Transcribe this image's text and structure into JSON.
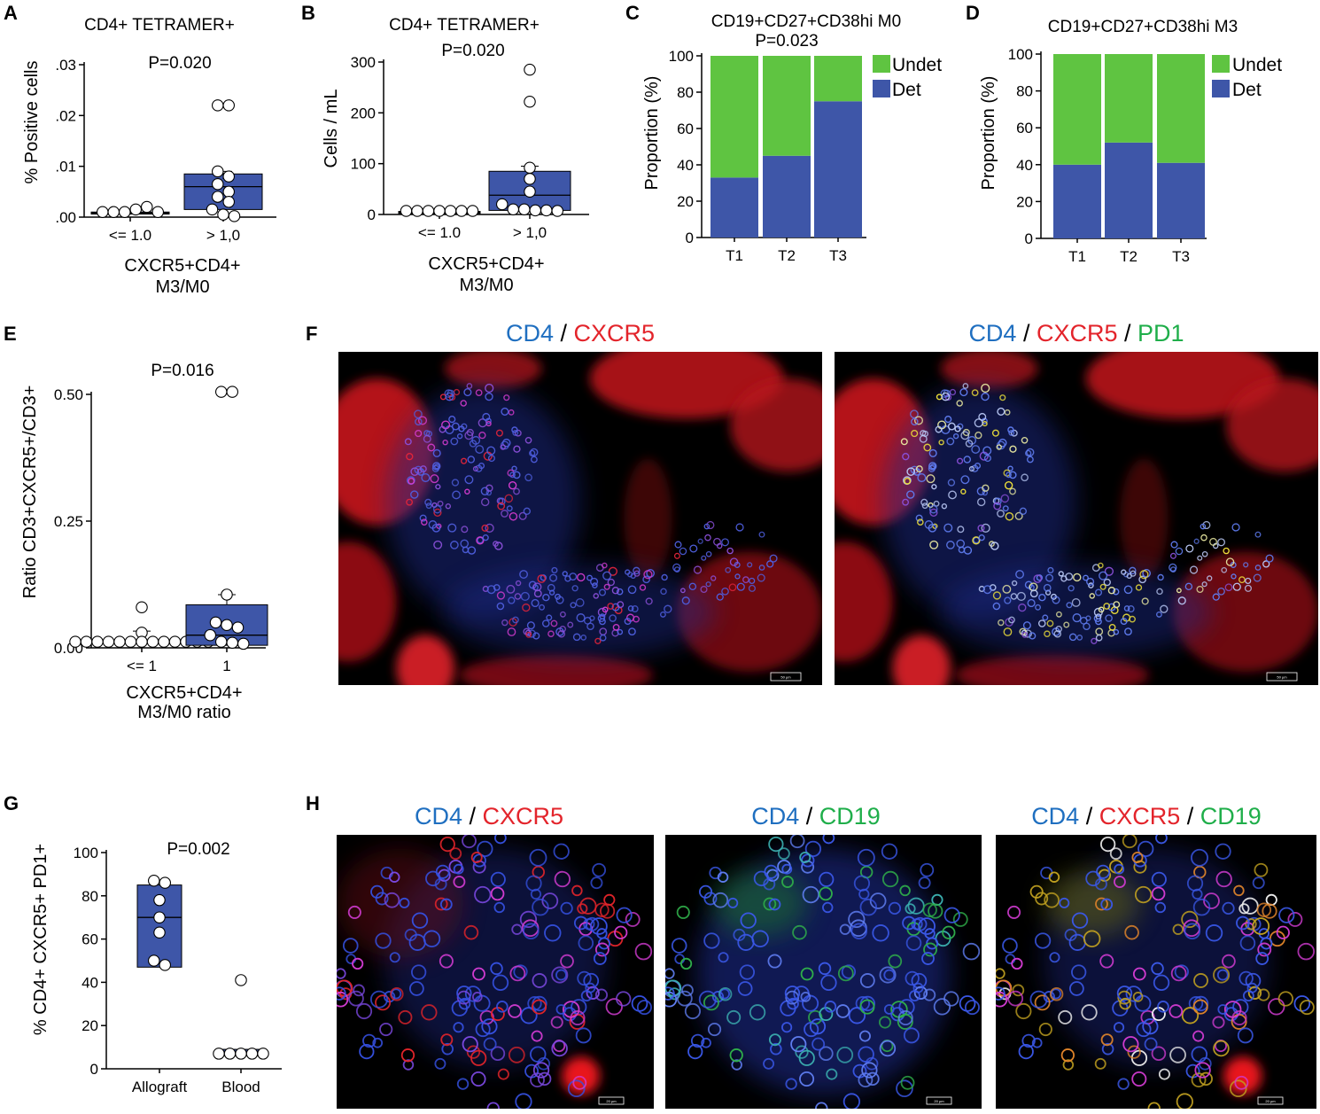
{
  "colors": {
    "box_fill": "#3e56a8",
    "det": "#3e56a8",
    "undet": "#5fc441",
    "cd4": "#1f6fc0",
    "cxcr5": "#e3242b",
    "green": "#1fae4a",
    "point_fill": "#ffffff",
    "axis": "#000000"
  },
  "panels": {
    "A": {
      "letter": "A",
      "title": "CD4+ TETRAMER+",
      "pvalue": "P=0.020"
    },
    "B": {
      "letter": "B",
      "title": "CD4+ TETRAMER+",
      "pvalue": "P=0.020"
    },
    "C": {
      "letter": "C",
      "title": "CD19+CD27+CD38hi M0",
      "pvalue": "P=0.023"
    },
    "D": {
      "letter": "D",
      "title": "CD19+CD27+CD38hi M3"
    },
    "E": {
      "letter": "E",
      "pvalue": "P=0.016"
    },
    "F": {
      "letter": "F"
    },
    "G": {
      "letter": "G",
      "pvalue": "P=0.002"
    },
    "H": {
      "letter": "H"
    }
  },
  "legend": {
    "undet": "Undet",
    "det": "Det"
  },
  "chart_data": [
    {
      "id": "A",
      "type": "box-scatter",
      "title": "CD4+ TETRAMER+",
      "ylabel": "% Positive cells",
      "xlabel": "CXCR5+CD4+ M3/M0",
      "xlabel_lines": [
        "CXCR5+CD4+",
        "M3/M0"
      ],
      "categories": [
        "<= 1.0",
        "> 1,0"
      ],
      "ylim": [
        0,
        0.03
      ],
      "yticks": [
        0,
        0.01,
        0.02,
        0.03
      ],
      "ytick_labels": [
        ".00",
        ".01",
        ".02",
        ".03"
      ],
      "groups": [
        {
          "category": "<= 1.0",
          "q1": 0.0006,
          "median": 0.0008,
          "q3": 0.001,
          "mean": 0.001,
          "sem": 0.0003,
          "points": [
            0.001,
            0.001,
            0.001,
            0.0015,
            0.002,
            0.001
          ]
        },
        {
          "category": "> 1,0",
          "q1": 0.0015,
          "median": 0.006,
          "q3": 0.0085,
          "mean": 0.0075,
          "sem": 0.0015,
          "points": [
            0.022,
            0.022,
            0.009,
            0.008,
            0.0065,
            0.005,
            0.004,
            0.003,
            0.0015,
            0.0005,
            0.0002
          ]
        }
      ]
    },
    {
      "id": "B",
      "type": "box-scatter",
      "title": "CD4+ TETRAMER+",
      "ylabel": "Cells / mL",
      "xlabel": "CXCR5+CD4+ M3/M0",
      "xlabel_lines": [
        "CXCR5+CD4+",
        "M3/M0"
      ],
      "categories": [
        "<= 1.0",
        "> 1,0"
      ],
      "ylim": [
        0,
        300
      ],
      "yticks": [
        0,
        100,
        200,
        300
      ],
      "ytick_labels": [
        "0",
        "100",
        "200",
        "300"
      ],
      "groups": [
        {
          "category": "<= 1.0",
          "q1": 2,
          "median": 4,
          "q3": 6,
          "mean": 5,
          "sem": 2,
          "points": [
            7,
            7,
            7,
            7,
            7,
            7,
            7
          ]
        },
        {
          "category": "> 1,0",
          "q1": 8,
          "median": 38,
          "q3": 85,
          "mean": 85,
          "sem": 10,
          "points": [
            285,
            222,
            92,
            70,
            45,
            20,
            10,
            10,
            8,
            8,
            7
          ]
        }
      ]
    },
    {
      "id": "C",
      "type": "bar",
      "stacked": true,
      "title": "CD19+CD27+CD38hi M0",
      "ylabel": "Proportion (%)",
      "categories": [
        "T1",
        "T2",
        "T3"
      ],
      "ylim": [
        0,
        100
      ],
      "yticks": [
        0,
        20,
        40,
        60,
        80,
        100
      ],
      "series": [
        {
          "name": "Det",
          "values": [
            33,
            45,
            75
          ]
        },
        {
          "name": "Undet",
          "values": [
            67,
            55,
            25
          ]
        }
      ],
      "legend_position": "top-right"
    },
    {
      "id": "D",
      "type": "bar",
      "stacked": true,
      "title": "CD19+CD27+CD38hi M3",
      "ylabel": "Proportion (%)",
      "categories": [
        "T1",
        "T2",
        "T3"
      ],
      "ylim": [
        0,
        100
      ],
      "yticks": [
        0,
        20,
        40,
        60,
        80,
        100
      ],
      "series": [
        {
          "name": "Det",
          "values": [
            40,
            52,
            41
          ]
        },
        {
          "name": "Undet",
          "values": [
            60,
            48,
            59
          ]
        }
      ],
      "legend_position": "top-right"
    },
    {
      "id": "E",
      "type": "box-scatter",
      "ylabel": "Ratio CD3+CXCR5+/CD3+",
      "xlabel": "CXCR5+CD4+ M3/M0 ratio",
      "xlabel_lines": [
        "CXCR5+CD4+",
        "M3/M0 ratio"
      ],
      "categories": [
        "<= 1",
        "1"
      ],
      "ylim": [
        0,
        0.55
      ],
      "yticks": [
        0,
        0.25,
        0.5
      ],
      "ytick_labels": [
        "0.00",
        "0.25",
        "0.50"
      ],
      "groups": [
        {
          "category": "<= 1",
          "q1": 0.008,
          "median": 0.012,
          "q3": 0.014,
          "mean": 0.018,
          "sem": 0.015,
          "points": [
            0.08,
            0.03,
            0.012,
            0.012,
            0.012,
            0.012,
            0.012,
            0.012,
            0.012,
            0.012,
            0.012,
            0.012,
            0.012,
            0.012,
            0.012
          ]
        },
        {
          "category": "1",
          "q1": 0.005,
          "median": 0.025,
          "q3": 0.085,
          "mean": 0.085,
          "sem": 0.02,
          "points": [
            0.505,
            0.505,
            0.105,
            0.05,
            0.045,
            0.04,
            0.025,
            0.012,
            0.01,
            0.008
          ]
        }
      ]
    },
    {
      "id": "G",
      "type": "box-scatter",
      "ylabel": "% CD4+ CXCR5+ PD1+",
      "categories": [
        "Allograft",
        "Blood"
      ],
      "ylim": [
        0,
        100
      ],
      "yticks": [
        0,
        20,
        40,
        60,
        80,
        100
      ],
      "ytick_labels": [
        "0",
        "20",
        "40",
        "60",
        "80",
        "100"
      ],
      "groups": [
        {
          "category": "Allograft",
          "q1": 47,
          "median": 70,
          "q3": 85,
          "points": [
            87,
            86,
            78,
            70,
            63,
            50,
            48
          ]
        },
        {
          "category": "Blood",
          "q1": 6,
          "median": 7,
          "q3": 9,
          "points": [
            41,
            7,
            7,
            7,
            7,
            7
          ]
        }
      ]
    }
  ],
  "micrographs": {
    "F": {
      "left": {
        "labels": [
          {
            "text": "CD4",
            "color": "cd4"
          },
          {
            "text": " / ",
            "color": "axis"
          },
          {
            "text": "CXCR5",
            "color": "cxcr5"
          }
        ],
        "scale_bar": "50 µm"
      },
      "right": {
        "labels": [
          {
            "text": "CD4",
            "color": "cd4"
          },
          {
            "text": " / ",
            "color": "axis"
          },
          {
            "text": "CXCR5",
            "color": "cxcr5"
          },
          {
            "text": " / ",
            "color": "axis"
          },
          {
            "text": "PD1",
            "color": "green"
          }
        ],
        "scale_bar": "50 µm"
      }
    },
    "H": {
      "left": {
        "labels": [
          {
            "text": "CD4",
            "color": "cd4"
          },
          {
            "text": " / ",
            "color": "axis"
          },
          {
            "text": "CXCR5",
            "color": "cxcr5"
          }
        ],
        "scale_bar": "20 µm"
      },
      "middle": {
        "labels": [
          {
            "text": "CD4",
            "color": "cd4"
          },
          {
            "text": " / ",
            "color": "axis"
          },
          {
            "text": "CD19",
            "color": "green"
          }
        ],
        "scale_bar": "20 µm"
      },
      "right": {
        "labels": [
          {
            "text": "CD4",
            "color": "cd4"
          },
          {
            "text": " / ",
            "color": "axis"
          },
          {
            "text": "CXCR5",
            "color": "cxcr5"
          },
          {
            "text": " / ",
            "color": "axis"
          },
          {
            "text": "CD19",
            "color": "green"
          }
        ],
        "scale_bar": "20 µm"
      }
    }
  }
}
